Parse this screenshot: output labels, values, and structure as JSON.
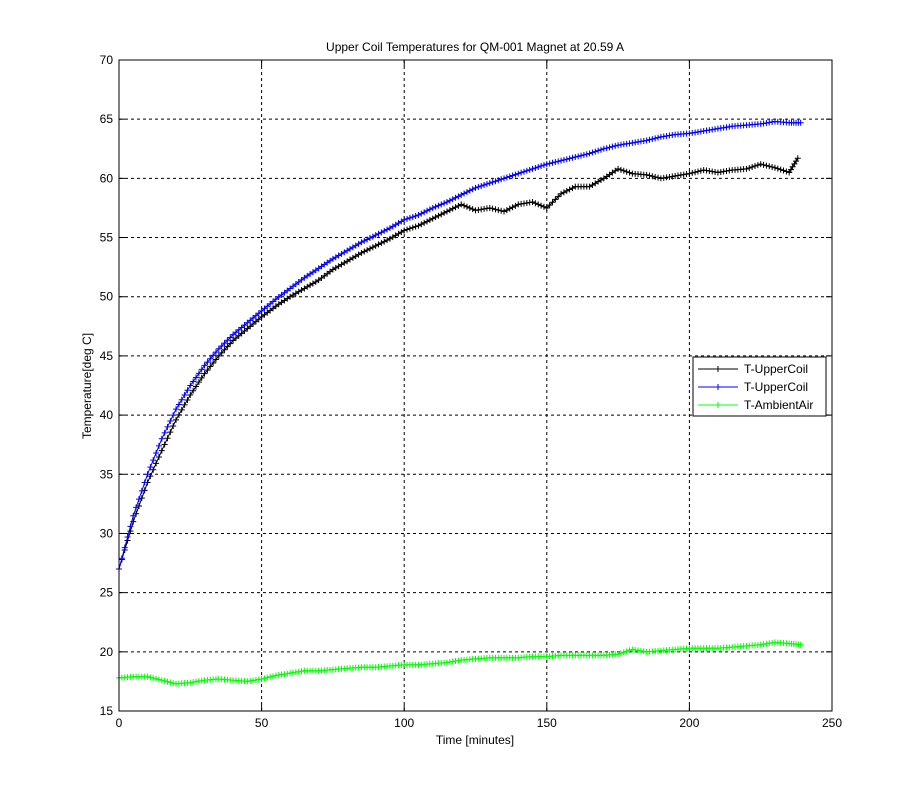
{
  "chart_data": {
    "type": "line",
    "title": "Upper Coil Temperatures for QM-001 Magnet at 20.59 A",
    "xlabel": "Time [minutes]",
    "ylabel": "Temperature[deg C]",
    "xlim": [
      0,
      250
    ],
    "ylim": [
      15,
      70
    ],
    "xticks": [
      0,
      50,
      100,
      150,
      200,
      250
    ],
    "yticks": [
      15,
      20,
      25,
      30,
      35,
      40,
      45,
      50,
      55,
      60,
      65,
      70
    ],
    "grid": true,
    "grid_style": "dashed",
    "legend_position": "right",
    "marker": "+",
    "series": [
      {
        "name": "T-UpperCoil",
        "color": "#000000",
        "x": [
          0,
          5,
          10,
          15,
          20,
          25,
          30,
          35,
          40,
          45,
          50,
          55,
          60,
          65,
          70,
          75,
          80,
          85,
          90,
          95,
          100,
          105,
          110,
          115,
          120,
          125,
          130,
          135,
          140,
          145,
          150,
          155,
          160,
          165,
          170,
          175,
          180,
          185,
          190,
          195,
          200,
          205,
          210,
          215,
          220,
          225,
          230,
          235,
          238
        ],
        "y": [
          27.0,
          31.0,
          34.3,
          37.0,
          39.6,
          41.7,
          43.5,
          45.0,
          46.3,
          47.3,
          48.3,
          49.2,
          50.0,
          50.7,
          51.4,
          52.3,
          53.0,
          53.7,
          54.3,
          54.9,
          55.6,
          56.0,
          56.6,
          57.2,
          57.8,
          57.3,
          57.5,
          57.2,
          57.8,
          58.0,
          57.5,
          58.7,
          59.3,
          59.3,
          60.0,
          60.8,
          60.4,
          60.3,
          60.0,
          60.2,
          60.4,
          60.7,
          60.5,
          60.7,
          60.8,
          61.2,
          60.9,
          60.5,
          61.7
        ]
      },
      {
        "name": "T-UpperCoil",
        "color": "#0000ff",
        "x": [
          0,
          5,
          10,
          15,
          20,
          25,
          30,
          35,
          40,
          45,
          50,
          55,
          60,
          65,
          70,
          75,
          80,
          85,
          90,
          95,
          100,
          105,
          110,
          115,
          120,
          125,
          130,
          135,
          140,
          145,
          150,
          155,
          160,
          165,
          170,
          175,
          180,
          185,
          190,
          195,
          200,
          205,
          210,
          215,
          220,
          225,
          230,
          235,
          239
        ],
        "y": [
          27.0,
          31.5,
          35.0,
          38.0,
          40.5,
          42.5,
          44.2,
          45.6,
          46.8,
          47.8,
          48.8,
          49.8,
          50.7,
          51.6,
          52.4,
          53.2,
          53.9,
          54.6,
          55.2,
          55.8,
          56.5,
          56.9,
          57.5,
          58.0,
          58.6,
          59.2,
          59.6,
          60.0,
          60.4,
          60.8,
          61.2,
          61.5,
          61.8,
          62.1,
          62.5,
          62.8,
          63.0,
          63.2,
          63.5,
          63.7,
          63.8,
          64.0,
          64.2,
          64.4,
          64.5,
          64.6,
          64.8,
          64.7,
          64.7
        ]
      },
      {
        "name": "T-AmbientAir",
        "color": "#00ff00",
        "x": [
          0,
          5,
          10,
          15,
          20,
          25,
          30,
          35,
          40,
          45,
          50,
          55,
          60,
          65,
          70,
          75,
          80,
          85,
          90,
          95,
          100,
          105,
          110,
          115,
          120,
          125,
          130,
          135,
          140,
          145,
          150,
          155,
          160,
          165,
          170,
          175,
          180,
          185,
          190,
          195,
          200,
          205,
          210,
          215,
          220,
          225,
          230,
          235,
          239
        ],
        "y": [
          17.8,
          17.9,
          17.9,
          17.6,
          17.3,
          17.4,
          17.6,
          17.7,
          17.6,
          17.5,
          17.7,
          18.0,
          18.2,
          18.4,
          18.4,
          18.5,
          18.6,
          18.7,
          18.7,
          18.8,
          18.9,
          18.9,
          19.0,
          19.1,
          19.3,
          19.4,
          19.5,
          19.5,
          19.5,
          19.6,
          19.6,
          19.7,
          19.7,
          19.7,
          19.7,
          19.8,
          20.2,
          20.0,
          20.1,
          20.2,
          20.3,
          20.3,
          20.3,
          20.4,
          20.5,
          20.6,
          20.8,
          20.7,
          20.6
        ]
      }
    ]
  }
}
